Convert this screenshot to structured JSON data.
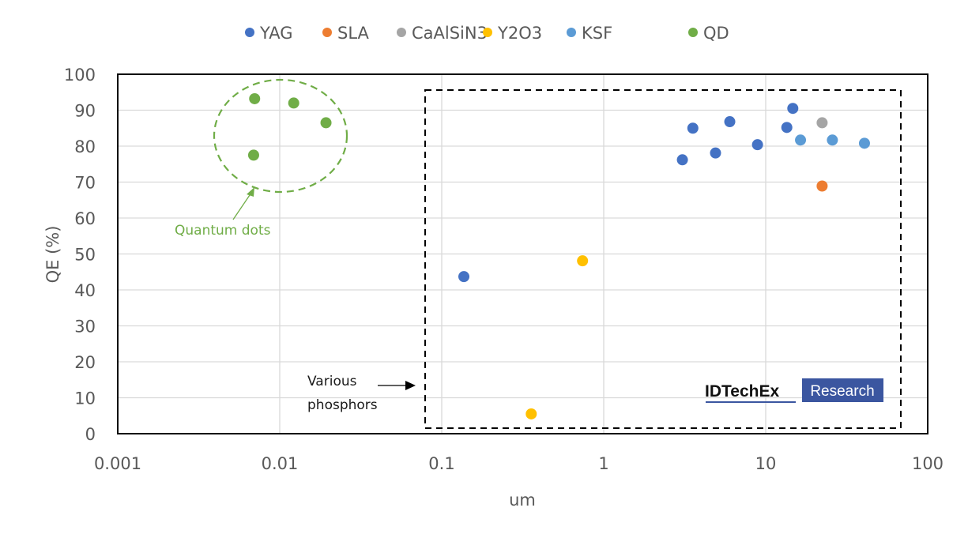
{
  "chart_data": {
    "type": "scatter",
    "title": "",
    "xlabel": "um",
    "ylabel": "QE (%)",
    "xscale": "log",
    "xlim": [
      0.001,
      100
    ],
    "ylim": [
      0,
      100
    ],
    "x_ticks": [
      "0.001",
      "0.01",
      "0.1",
      "1",
      "10",
      "100"
    ],
    "y_ticks": [
      "0",
      "10",
      "20",
      "30",
      "40",
      "50",
      "60",
      "70",
      "80",
      "90",
      "100"
    ],
    "grid": true,
    "legend_position": "top-center",
    "series": [
      {
        "name": "YAG",
        "color": "#4472c4",
        "points": [
          [
            0.137,
            43.7
          ],
          [
            3.06,
            76.2
          ],
          [
            3.55,
            85.0
          ],
          [
            4.9,
            78.1
          ],
          [
            6.0,
            86.8
          ],
          [
            8.9,
            80.4
          ],
          [
            13.5,
            85.2
          ],
          [
            14.7,
            90.5
          ]
        ]
      },
      {
        "name": "SLA",
        "color": "#ed7d31",
        "points": [
          [
            22.3,
            68.9
          ]
        ]
      },
      {
        "name": "CaAlSiN3",
        "color": "#a5a5a5",
        "points": [
          [
            22.3,
            86.5
          ]
        ]
      },
      {
        "name": "Y2O3",
        "color": "#ffc000",
        "points": [
          [
            0.357,
            5.5
          ],
          [
            0.74,
            48.1
          ]
        ]
      },
      {
        "name": "KSF",
        "color": "#5b9bd5",
        "points": [
          [
            16.4,
            81.7
          ],
          [
            25.8,
            81.7
          ],
          [
            40.7,
            80.8
          ]
        ]
      },
      {
        "name": "QD",
        "color": "#70ad47",
        "points": [
          [
            0.007,
            93.2
          ],
          [
            0.0122,
            92.0
          ],
          [
            0.0193,
            86.5
          ],
          [
            0.0069,
            77.5
          ]
        ]
      }
    ],
    "annotations": [
      {
        "text": "Quantum dots",
        "color": "#70ad47"
      },
      {
        "text_lines": [
          "Various",
          "phosphors"
        ],
        "color": "#000000"
      }
    ]
  },
  "branding": {
    "logo_main": "IDTechEx",
    "logo_sub": "Research",
    "logo_color": "#3b56a0"
  }
}
